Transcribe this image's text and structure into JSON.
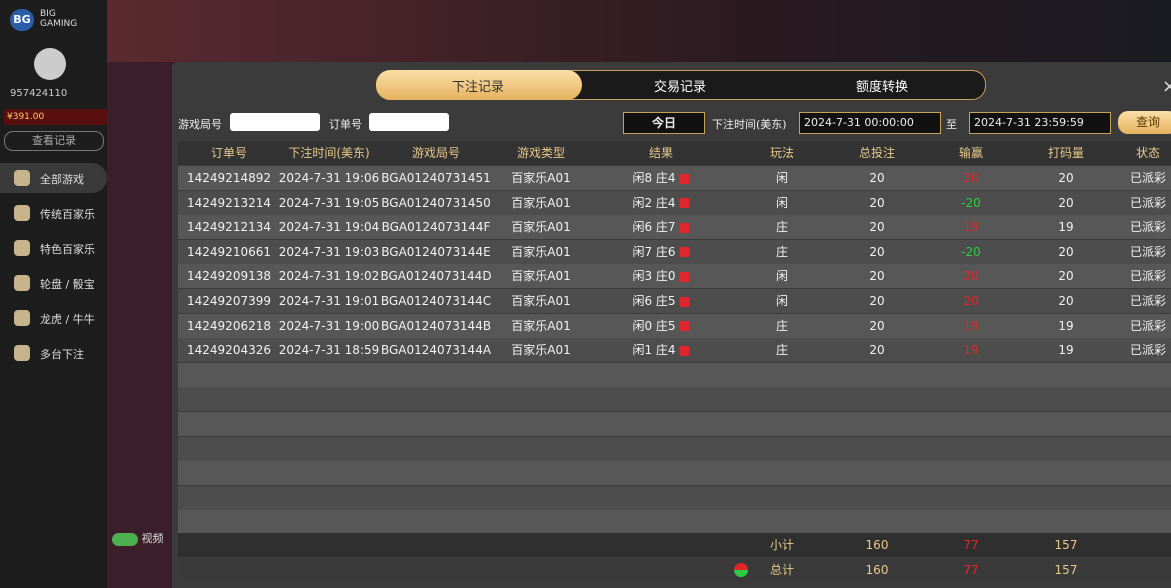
{
  "sidebar": {
    "logo": "BG",
    "brand": [
      "BIG",
      "GAMING"
    ],
    "user_id": "957424110",
    "balance": "¥391.00",
    "records_button": "查看记录",
    "menu": [
      "全部游戏",
      "传统百家乐",
      "特色百家乐",
      "轮盘 / 骰宝",
      "龙虎 / 牛牛",
      "多台下注"
    ],
    "video_toggle": "视频"
  },
  "tabs": [
    "下注记录",
    "交易记录",
    "额度转换"
  ],
  "filters": {
    "round_label": "游戏局号",
    "order_label": "订单号",
    "period": "今日",
    "time_label": "下注时间(美东)",
    "start": "2024-7-31 00:00:00",
    "to": "至",
    "end": "2024-7-31 23:59:59",
    "query": "查询"
  },
  "table": {
    "columns": [
      "订单号",
      "下注时间(美东)",
      "游戏局号",
      "游戏类型",
      "结果",
      "玩法",
      "总投注",
      "输赢",
      "打码量",
      "状态"
    ],
    "rows": [
      [
        "14249214892",
        "2024-7-31 19:06",
        "BGA01240731451",
        "百家乐A01",
        "闲8 庄4",
        "闲",
        20,
        20,
        20,
        "已派彩"
      ],
      [
        "14249213214",
        "2024-7-31 19:05",
        "BGA01240731450",
        "百家乐A01",
        "闲2 庄4",
        "闲",
        20,
        -20,
        20,
        "已派彩"
      ],
      [
        "14249212134",
        "2024-7-31 19:04",
        "BGA0124073144F",
        "百家乐A01",
        "闲6 庄7",
        "庄",
        20,
        19,
        19,
        "已派彩"
      ],
      [
        "14249210661",
        "2024-7-31 19:03",
        "BGA0124073144E",
        "百家乐A01",
        "闲7 庄6",
        "庄",
        20,
        -20,
        20,
        "已派彩"
      ],
      [
        "14249209138",
        "2024-7-31 19:02",
        "BGA0124073144D",
        "百家乐A01",
        "闲3 庄0",
        "闲",
        20,
        20,
        20,
        "已派彩"
      ],
      [
        "14249207399",
        "2024-7-31 19:01",
        "BGA0124073144C",
        "百家乐A01",
        "闲6 庄5",
        "闲",
        20,
        20,
        20,
        "已派彩"
      ],
      [
        "14249206218",
        "2024-7-31 19:00",
        "BGA0124073144B",
        "百家乐A01",
        "闲0 庄5",
        "庄",
        20,
        19,
        19,
        "已派彩"
      ],
      [
        "14249204326",
        "2024-7-31 18:59",
        "BGA0124073144A",
        "百家乐A01",
        "闲1 庄4",
        "庄",
        20,
        19,
        19,
        "已派彩"
      ]
    ],
    "subtotal": {
      "label": "小计",
      "total_bet": 160,
      "win_loss": 77,
      "turnover": 157
    },
    "total": {
      "label": "总计",
      "total_bet": 160,
      "win_loss": 77,
      "turnover": 157
    }
  }
}
